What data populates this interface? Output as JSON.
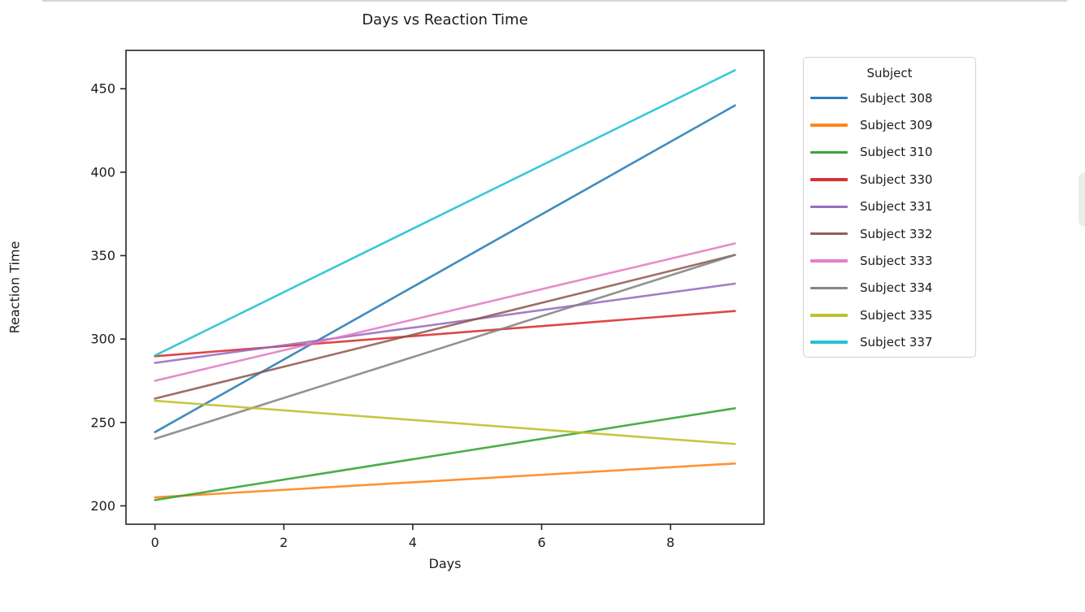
{
  "chart_data": {
    "type": "line",
    "title": "Days vs Reaction Time",
    "xlabel": "Days",
    "ylabel": "Reaction Time",
    "xlim": [
      -0.45,
      9.45
    ],
    "ylim": [
      189,
      473
    ],
    "xticks": [
      0,
      2,
      4,
      6,
      8
    ],
    "yticks": [
      200,
      250,
      300,
      350,
      400,
      450
    ],
    "grid": false,
    "line_width": 2.6,
    "line_opacity": 0.85,
    "axis_color": "#262626",
    "legend": {
      "title": "Subject",
      "position": "outside-right"
    },
    "x": [
      0,
      9
    ],
    "series": [
      {
        "name": "Subject 308",
        "color": "#1f77b4",
        "values": [
          244.2,
          440.0
        ]
      },
      {
        "name": "Subject 309",
        "color": "#ff7f0e",
        "values": [
          205.1,
          225.4
        ]
      },
      {
        "name": "Subject 310",
        "color": "#2ca02c",
        "values": [
          203.5,
          258.5
        ]
      },
      {
        "name": "Subject 330",
        "color": "#d62728",
        "values": [
          289.7,
          316.8
        ]
      },
      {
        "name": "Subject 331",
        "color": "#9467bd",
        "values": [
          285.7,
          333.2
        ]
      },
      {
        "name": "Subject 332",
        "color": "#8c564b",
        "values": [
          264.3,
          350.4
        ]
      },
      {
        "name": "Subject 333",
        "color": "#e377c2",
        "values": [
          275.0,
          357.3
        ]
      },
      {
        "name": "Subject 334",
        "color": "#7f7f7f",
        "values": [
          240.2,
          350.4
        ]
      },
      {
        "name": "Subject 335",
        "color": "#bcbd22",
        "values": [
          263.0,
          237.1
        ]
      },
      {
        "name": "Subject 337",
        "color": "#17becf",
        "values": [
          290.1,
          461.1
        ]
      }
    ]
  }
}
